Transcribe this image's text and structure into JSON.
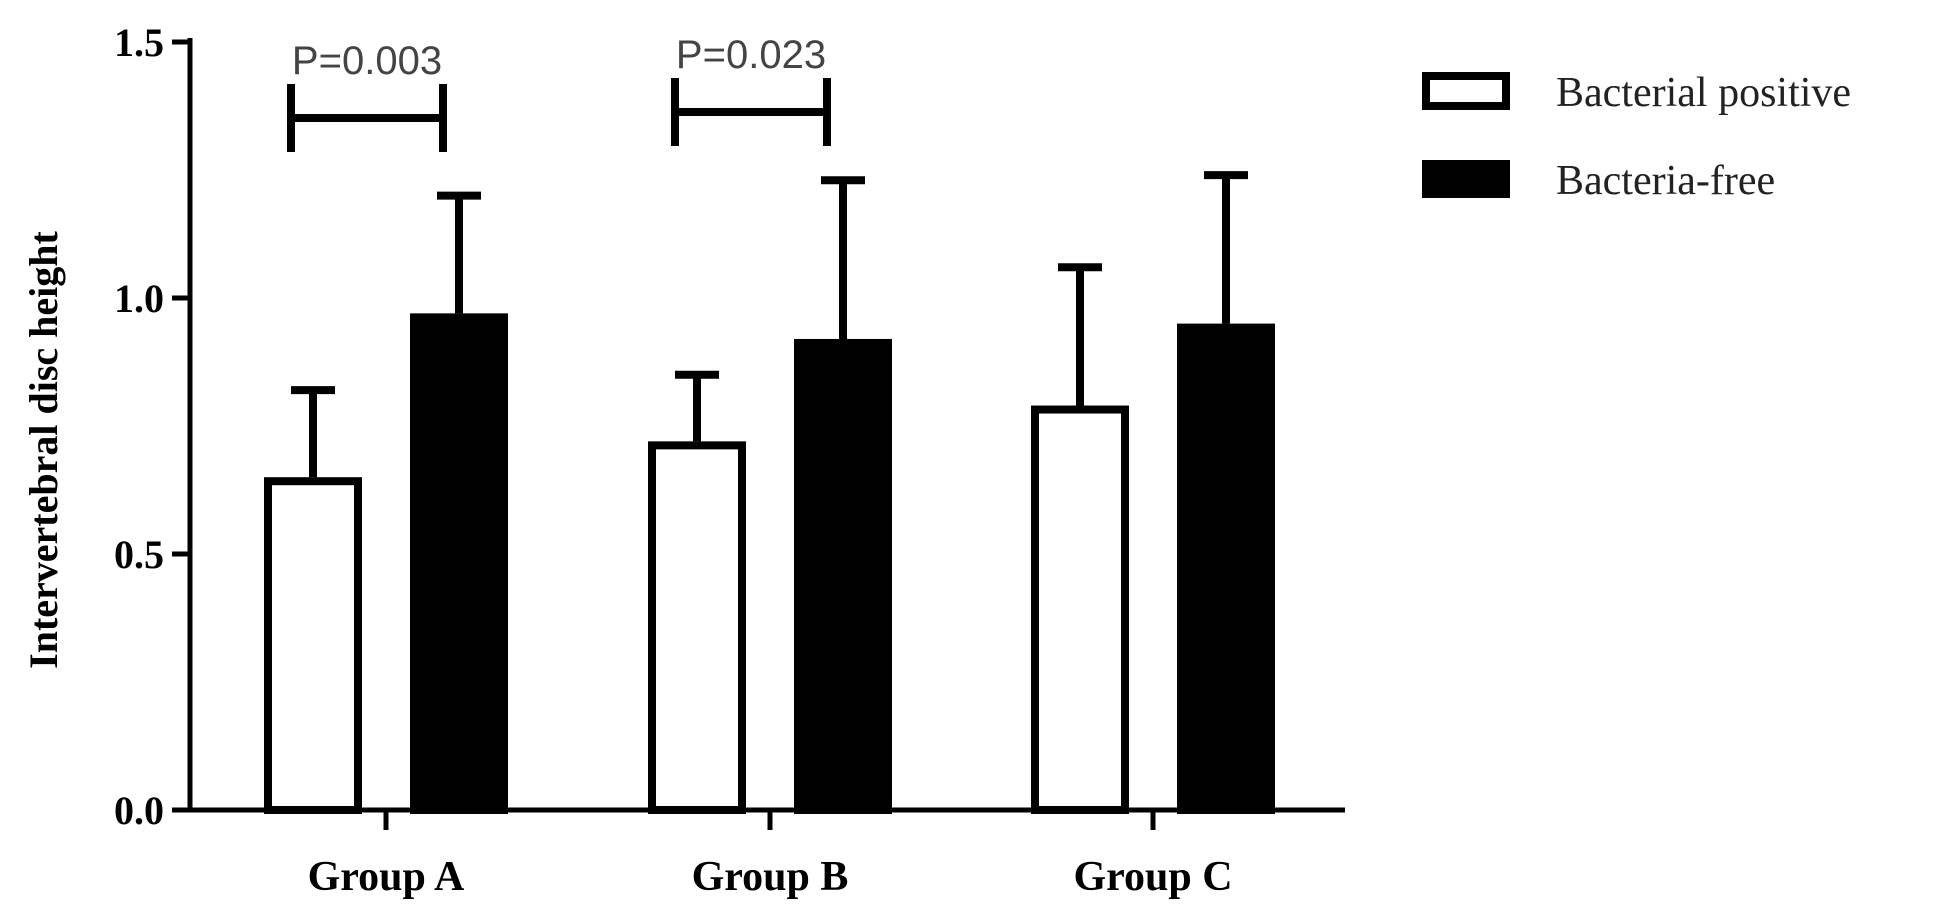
{
  "chart_data": {
    "type": "bar",
    "categories": [
      "Group A",
      "Group B",
      "Group C"
    ],
    "series": [
      {
        "name": "Bacterial positive",
        "fill": "#ffffff",
        "values": [
          0.65,
          0.72,
          0.79
        ],
        "errors": [
          0.17,
          0.13,
          0.27
        ]
      },
      {
        "name": "Bacteria-free",
        "fill": "#000000",
        "values": [
          0.97,
          0.92,
          0.95
        ],
        "errors": [
          0.23,
          0.31,
          0.29
        ]
      }
    ],
    "xlabel": "",
    "ylabel": "Intervertebral disc height",
    "ylim": [
      0,
      1.5
    ],
    "yticks": [
      "0.0",
      "0.5",
      "1.0",
      "1.5"
    ],
    "grid": false,
    "legend_position": "top-right",
    "significance": [
      {
        "category": "Group A",
        "label": "P=0.003"
      },
      {
        "category": "Group B",
        "label": "P=0.023"
      }
    ],
    "colors": {
      "axis": "#000000",
      "pvalue_text": "#444444"
    }
  }
}
